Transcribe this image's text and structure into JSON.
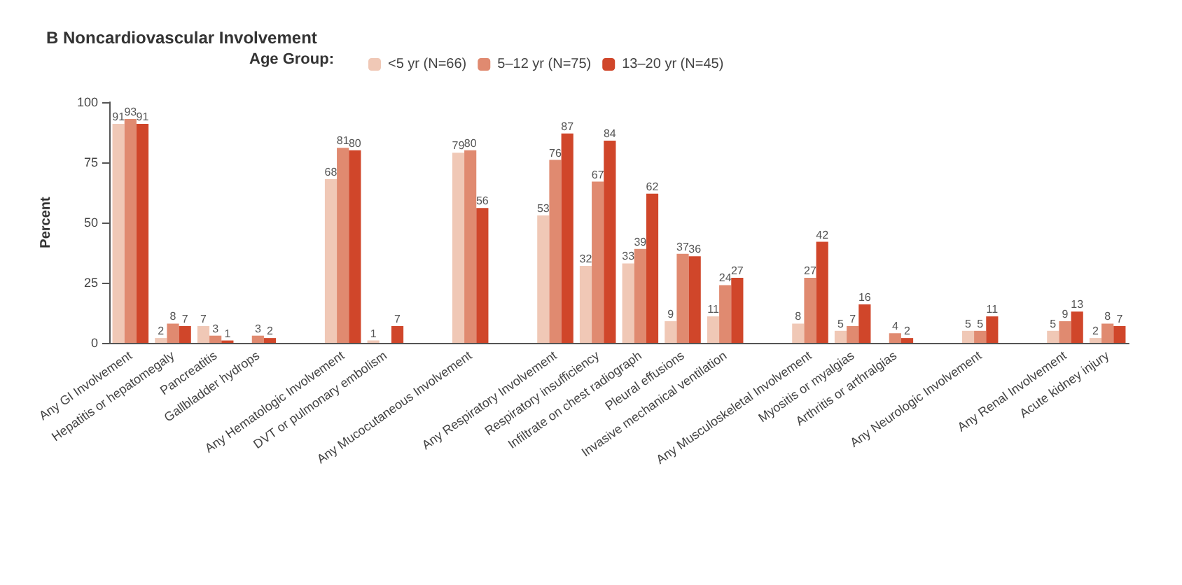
{
  "chart_data": {
    "type": "bar",
    "title": "B Noncardiovascular Involvement",
    "ylabel": "Percent",
    "legend_title": "Age Group:",
    "legend": "top",
    "grid": false,
    "categories": [
      "Any GI Involvement",
      "Hepatitis or hepatomegaly",
      "Pancreatitis",
      "Gallbladder hydrops",
      null,
      "Any Hematologic Involvement",
      "DVT or pulmonary embolism",
      null,
      "Any Mucocutaneous Involvement",
      null,
      "Any Respiratory Involvement",
      "Respiratory insufficiency",
      "Infiltrate on chest radiograph",
      "Pleural effusions",
      "Invasive mechanical ventilation",
      null,
      "Any Musculoskeletal Involvement",
      "Myositis or myalgias",
      "Arthritis or arthralgias",
      null,
      "Any Neurologic Involvement",
      null,
      "Any Renal Involvement",
      "Acute kidney injury"
    ],
    "ylim": [
      0,
      100
    ],
    "yticks": [
      0,
      25,
      50,
      75,
      100
    ],
    "series": [
      {
        "name": "<5 yr (N=66)",
        "color": "#f0c8b6",
        "values": [
          91,
          2,
          7,
          0,
          null,
          68,
          1,
          null,
          79,
          null,
          53,
          32,
          33,
          9,
          11,
          null,
          8,
          5,
          0,
          null,
          5,
          null,
          5,
          2
        ],
        "value_labels": [
          "91",
          "2",
          "7",
          null,
          null,
          "68",
          "1",
          null,
          "79",
          null,
          "53",
          "32",
          "33",
          "9",
          "11",
          null,
          "8",
          "5",
          null,
          null,
          "5",
          null,
          "5",
          "2"
        ]
      },
      {
        "name": "5–12 yr (N=75)",
        "color": "#e08a70",
        "values": [
          93,
          8,
          3,
          3,
          null,
          81,
          0,
          null,
          80,
          null,
          76,
          67,
          39,
          37,
          24,
          null,
          27,
          7,
          4,
          null,
          5,
          null,
          9,
          8
        ],
        "value_labels": [
          "93",
          "8",
          "3",
          "3",
          null,
          "81",
          null,
          null,
          "80",
          null,
          "76",
          "67",
          "39",
          "37",
          "24",
          null,
          "27",
          "7",
          "4",
          null,
          "5",
          null,
          "9",
          "8"
        ]
      },
      {
        "name": "13–20 yr (N=45)",
        "color": "#d0462a",
        "values": [
          91,
          7,
          1,
          2,
          null,
          80,
          7,
          null,
          56,
          null,
          87,
          84,
          62,
          36,
          27,
          null,
          42,
          16,
          2,
          null,
          11,
          null,
          13,
          7
        ],
        "value_labels": [
          "91",
          "7",
          "1",
          "2",
          null,
          "80",
          "7",
          null,
          "56",
          null,
          "87",
          "84",
          "62",
          "36",
          "27",
          null,
          "42",
          "16",
          "2",
          null,
          "11",
          null,
          "13",
          "7"
        ]
      }
    ]
  }
}
